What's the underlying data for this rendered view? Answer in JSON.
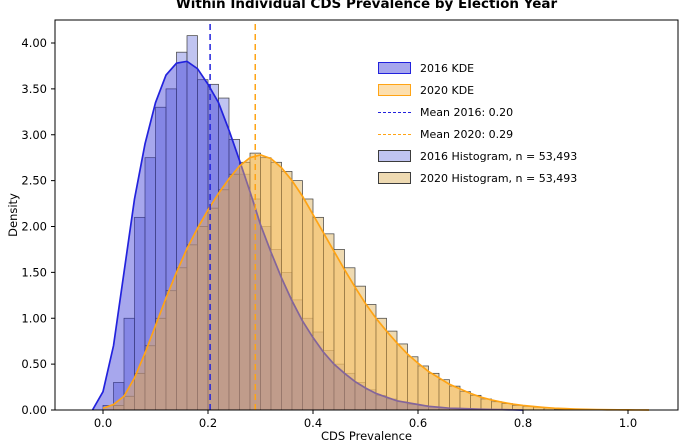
{
  "chart_data": {
    "type": "histogram+kde",
    "title": "Within Individual CDS Prevalence by Election Year",
    "xlabel": "CDS Prevalence",
    "ylabel": "Density",
    "xlim": [
      -0.09,
      1.1
    ],
    "ylim": [
      0,
      4.25
    ],
    "grid": false,
    "legend_position": "upper right",
    "xtick_values": [
      0.0,
      0.2,
      0.4,
      0.6,
      0.8,
      1.0
    ],
    "xtick_labels": [
      "0.0",
      "0.2",
      "0.4",
      "0.6",
      "0.8",
      "1.0"
    ],
    "ytick_values": [
      0,
      0.5,
      1.0,
      1.5,
      2.0,
      2.5,
      3.0,
      3.5,
      4.0
    ],
    "ytick_labels": [
      "0.00",
      "0.50",
      "1.00",
      "1.50",
      "2.00",
      "2.50",
      "3.00",
      "3.50",
      "4.00"
    ],
    "histograms": [
      {
        "name": "2016 Histogram, n = 53,493",
        "bin_start": 0.0,
        "bin_width": 0.02,
        "fill": "rgba(140,148,230,0.55)",
        "edge": "#3c3c3c",
        "heights": [
          0.05,
          0.3,
          1.0,
          2.1,
          2.75,
          3.3,
          3.5,
          3.9,
          4.08,
          3.6,
          3.55,
          3.4,
          2.95,
          2.57,
          2.3,
          2.0,
          1.75,
          1.5,
          1.2,
          1.0,
          0.85,
          0.65,
          0.5,
          0.4,
          0.3,
          0.22,
          0.16,
          0.12,
          0.09,
          0.06,
          0.05,
          0.03,
          0.02,
          0.02,
          0.01,
          0.01
        ]
      },
      {
        "name": "2020 Histogram, n = 53,493",
        "bin_start": 0.02,
        "bin_width": 0.02,
        "fill": "rgba(228,196,130,0.62)",
        "edge": "#3c3c3c",
        "heights": [
          0.05,
          0.15,
          0.4,
          0.7,
          1.0,
          1.3,
          1.55,
          1.8,
          2.0,
          2.2,
          2.4,
          2.57,
          2.7,
          2.8,
          2.75,
          2.7,
          2.6,
          2.5,
          2.3,
          2.1,
          1.92,
          1.75,
          1.55,
          1.35,
          1.15,
          1.0,
          0.86,
          0.72,
          0.58,
          0.48,
          0.4,
          0.33,
          0.26,
          0.2,
          0.16,
          0.12,
          0.09,
          0.07,
          0.05,
          0.04,
          0.03,
          0.02,
          0.01
        ]
      }
    ],
    "kdes": [
      {
        "name": "2016 KDE",
        "stroke": "#2222dd",
        "fill": "rgba(60,60,215,0.45)",
        "x": [
          -0.02,
          0.0,
          0.02,
          0.04,
          0.06,
          0.08,
          0.1,
          0.12,
          0.14,
          0.16,
          0.18,
          0.2,
          0.22,
          0.24,
          0.26,
          0.28,
          0.3,
          0.32,
          0.34,
          0.36,
          0.38,
          0.4,
          0.42,
          0.44,
          0.46,
          0.48,
          0.5,
          0.52,
          0.54,
          0.56,
          0.58,
          0.6,
          0.62,
          0.64,
          0.66,
          0.68,
          0.7,
          0.72,
          0.74,
          0.76,
          0.78,
          0.8
        ],
        "y": [
          0.0,
          0.2,
          0.7,
          1.5,
          2.3,
          2.9,
          3.35,
          3.65,
          3.78,
          3.8,
          3.72,
          3.55,
          3.35,
          3.05,
          2.72,
          2.38,
          2.02,
          1.72,
          1.44,
          1.19,
          0.97,
          0.79,
          0.63,
          0.5,
          0.4,
          0.31,
          0.24,
          0.18,
          0.14,
          0.1,
          0.08,
          0.06,
          0.04,
          0.03,
          0.02,
          0.016,
          0.012,
          0.008,
          0.006,
          0.004,
          0.002,
          0.0
        ]
      },
      {
        "name": "2020 KDE",
        "stroke": "#ffa415",
        "fill": "rgba(250,185,75,0.45)",
        "x": [
          0.0,
          0.02,
          0.04,
          0.06,
          0.08,
          0.1,
          0.12,
          0.14,
          0.16,
          0.18,
          0.2,
          0.22,
          0.24,
          0.26,
          0.28,
          0.3,
          0.32,
          0.34,
          0.36,
          0.38,
          0.4,
          0.42,
          0.44,
          0.46,
          0.48,
          0.5,
          0.52,
          0.54,
          0.56,
          0.58,
          0.6,
          0.62,
          0.64,
          0.66,
          0.68,
          0.7,
          0.72,
          0.74,
          0.76,
          0.78,
          0.8,
          0.82,
          0.84,
          0.86,
          0.88,
          0.9,
          0.92,
          0.94,
          0.96,
          0.98,
          1.0,
          1.02,
          1.04
        ],
        "y": [
          0.02,
          0.06,
          0.15,
          0.35,
          0.62,
          0.92,
          1.22,
          1.5,
          1.76,
          1.98,
          2.18,
          2.36,
          2.52,
          2.66,
          2.75,
          2.78,
          2.74,
          2.64,
          2.5,
          2.33,
          2.13,
          1.93,
          1.73,
          1.53,
          1.34,
          1.16,
          1.0,
          0.86,
          0.73,
          0.61,
          0.51,
          0.42,
          0.35,
          0.28,
          0.23,
          0.18,
          0.14,
          0.11,
          0.085,
          0.065,
          0.05,
          0.038,
          0.028,
          0.02,
          0.015,
          0.01,
          0.007,
          0.005,
          0.003,
          0.002,
          0.001,
          0.0005,
          0.0
        ]
      }
    ],
    "mean_lines": [
      {
        "label": "Mean 2016: 0.20",
        "x": 0.204,
        "color": "#2222dd"
      },
      {
        "label": "Mean 2020: 0.29",
        "x": 0.29,
        "color": "#ffa415"
      }
    ],
    "legend": [
      {
        "label": "2016 KDE",
        "type": "patch",
        "fill": "rgba(60,60,215,0.45)",
        "border": "#2222dd"
      },
      {
        "label": "2020 KDE",
        "type": "patch",
        "fill": "rgba(250,185,75,0.45)",
        "border": "#ffa415"
      },
      {
        "label": "Mean 2016: 0.20",
        "type": "dashed",
        "color": "#2222dd"
      },
      {
        "label": "Mean 2020: 0.29",
        "type": "dashed",
        "color": "#ffa415"
      },
      {
        "label": "2016 Histogram, n = 53,493",
        "type": "patch",
        "fill": "rgba(140,148,230,0.55)",
        "border": "#3c3c3c"
      },
      {
        "label": "2020 Histogram, n = 53,493",
        "type": "patch",
        "fill": "rgba(228,196,130,0.62)",
        "border": "#3c3c3c"
      }
    ]
  }
}
